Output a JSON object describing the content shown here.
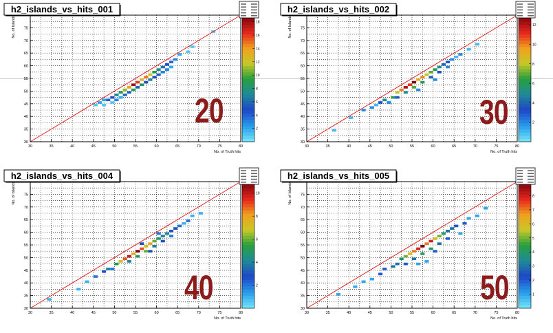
{
  "chart_data": [
    {
      "type": "heatmap",
      "title": "h2_islands_vs_hits_001",
      "xlabel": "No. of Truth hits",
      "ylabel": "No. of Islands",
      "xlim": [
        30,
        80
      ],
      "ylim": [
        30,
        80
      ],
      "xticks": [
        "30",
        "35",
        "40",
        "45",
        "50",
        "55",
        "60",
        "65",
        "70",
        "75",
        "80"
      ],
      "yticks": [
        "30",
        "35",
        "40",
        "45",
        "50",
        "55",
        "60",
        "65",
        "70",
        "75"
      ],
      "zticks": [
        "2",
        "4",
        "6",
        "8",
        "10",
        "12",
        "14",
        "16",
        "18"
      ],
      "zmax": 19,
      "grid": true,
      "reference_line": "y = x",
      "annotation": "20",
      "entries": [
        {
          "x": 45,
          "y": 44,
          "z": 1
        },
        {
          "x": 46,
          "y": 45,
          "z": 2
        },
        {
          "x": 47,
          "y": 46,
          "z": 2
        },
        {
          "x": 48,
          "y": 46,
          "z": 4
        },
        {
          "x": 49,
          "y": 47,
          "z": 5
        },
        {
          "x": 50,
          "y": 48,
          "z": 7
        },
        {
          "x": 51,
          "y": 49,
          "z": 9
        },
        {
          "x": 52,
          "y": 50,
          "z": 11
        },
        {
          "x": 53,
          "y": 51,
          "z": 14
        },
        {
          "x": 54,
          "y": 52,
          "z": 18
        },
        {
          "x": 55,
          "y": 53,
          "z": 16
        },
        {
          "x": 56,
          "y": 54,
          "z": 13
        },
        {
          "x": 57,
          "y": 55,
          "z": 15
        },
        {
          "x": 58,
          "y": 56,
          "z": 12
        },
        {
          "x": 59,
          "y": 57,
          "z": 9
        },
        {
          "x": 60,
          "y": 58,
          "z": 8
        },
        {
          "x": 61,
          "y": 59,
          "z": 6
        },
        {
          "x": 62,
          "y": 60,
          "z": 5
        },
        {
          "x": 63,
          "y": 61,
          "z": 4
        },
        {
          "x": 64,
          "y": 62,
          "z": 3
        },
        {
          "x": 65,
          "y": 64,
          "z": 2
        },
        {
          "x": 67,
          "y": 65,
          "z": 1
        },
        {
          "x": 50,
          "y": 46,
          "z": 3
        },
        {
          "x": 52,
          "y": 48,
          "z": 6
        },
        {
          "x": 54,
          "y": 50,
          "z": 9
        },
        {
          "x": 56,
          "y": 52,
          "z": 8
        },
        {
          "x": 58,
          "y": 54,
          "z": 7
        },
        {
          "x": 60,
          "y": 56,
          "z": 4
        },
        {
          "x": 62,
          "y": 58,
          "z": 3
        },
        {
          "x": 47,
          "y": 44,
          "z": 1
        },
        {
          "x": 53,
          "y": 49,
          "z": 4
        },
        {
          "x": 57,
          "y": 53,
          "z": 5
        },
        {
          "x": 61,
          "y": 57,
          "z": 3
        },
        {
          "x": 73,
          "y": 73,
          "z": 1
        },
        {
          "x": 68,
          "y": 67,
          "z": 1
        },
        {
          "x": 51,
          "y": 47,
          "z": 2
        },
        {
          "x": 55,
          "y": 51,
          "z": 6
        },
        {
          "x": 59,
          "y": 55,
          "z": 5
        },
        {
          "x": 63,
          "y": 59,
          "z": 2
        },
        {
          "x": 49,
          "y": 45,
          "z": 1
        }
      ]
    },
    {
      "type": "heatmap",
      "title": "h2_islands_vs_hits_002",
      "xlabel": "No. of Truth hits",
      "ylabel": "No. of Islands",
      "xlim": [
        30,
        80
      ],
      "ylim": [
        30,
        80
      ],
      "xticks": [
        "30",
        "35",
        "40",
        "45",
        "50",
        "55",
        "60",
        "65",
        "70",
        "75",
        "80"
      ],
      "yticks": [
        "30",
        "35",
        "40",
        "45",
        "50",
        "55",
        "60",
        "65",
        "70",
        "75"
      ],
      "zticks": [
        "2",
        "4",
        "6",
        "8",
        "10",
        "12"
      ],
      "zmax": 13,
      "grid": true,
      "reference_line": "y = x",
      "annotation": "30",
      "entries": [
        {
          "x": 36,
          "y": 34,
          "z": 1
        },
        {
          "x": 40,
          "y": 39,
          "z": 1
        },
        {
          "x": 43,
          "y": 42,
          "z": 2
        },
        {
          "x": 45,
          "y": 43,
          "z": 2
        },
        {
          "x": 47,
          "y": 45,
          "z": 3
        },
        {
          "x": 48,
          "y": 46,
          "z": 5
        },
        {
          "x": 50,
          "y": 47,
          "z": 6
        },
        {
          "x": 51,
          "y": 49,
          "z": 8
        },
        {
          "x": 52,
          "y": 50,
          "z": 10
        },
        {
          "x": 53,
          "y": 51,
          "z": 12
        },
        {
          "x": 54,
          "y": 52,
          "z": 11
        },
        {
          "x": 55,
          "y": 53,
          "z": 13
        },
        {
          "x": 56,
          "y": 54,
          "z": 9
        },
        {
          "x": 57,
          "y": 55,
          "z": 10
        },
        {
          "x": 58,
          "y": 56,
          "z": 8
        },
        {
          "x": 59,
          "y": 57,
          "z": 7
        },
        {
          "x": 60,
          "y": 58,
          "z": 6
        },
        {
          "x": 61,
          "y": 59,
          "z": 5
        },
        {
          "x": 62,
          "y": 60,
          "z": 4
        },
        {
          "x": 63,
          "y": 61,
          "z": 3
        },
        {
          "x": 64,
          "y": 62,
          "z": 2
        },
        {
          "x": 66,
          "y": 64,
          "z": 2
        },
        {
          "x": 68,
          "y": 66,
          "z": 1
        },
        {
          "x": 70,
          "y": 68,
          "z": 1
        },
        {
          "x": 53,
          "y": 49,
          "z": 5
        },
        {
          "x": 55,
          "y": 51,
          "z": 7
        },
        {
          "x": 57,
          "y": 53,
          "z": 6
        },
        {
          "x": 59,
          "y": 55,
          "z": 4
        },
        {
          "x": 61,
          "y": 57,
          "z": 3
        },
        {
          "x": 49,
          "y": 45,
          "z": 2
        },
        {
          "x": 51,
          "y": 47,
          "z": 3
        },
        {
          "x": 63,
          "y": 59,
          "z": 2
        },
        {
          "x": 56,
          "y": 50,
          "z": 2
        },
        {
          "x": 60,
          "y": 54,
          "z": 2
        },
        {
          "x": 46,
          "y": 44,
          "z": 1
        },
        {
          "x": 65,
          "y": 63,
          "z": 1
        }
      ]
    },
    {
      "type": "heatmap",
      "title": "h2_islands_vs_hits_004",
      "xlabel": "No. of Truth hits",
      "ylabel": "No. of Islands",
      "xlim": [
        30,
        80
      ],
      "ylim": [
        30,
        80
      ],
      "xticks": [
        "30",
        "35",
        "40",
        "45",
        "50",
        "55",
        "60",
        "65",
        "70",
        "75",
        "80"
      ],
      "yticks": [
        "30",
        "35",
        "40",
        "45",
        "50",
        "55",
        "60",
        "65",
        "70",
        "75"
      ],
      "zticks": [
        "2",
        "4",
        "6",
        "8",
        "10"
      ],
      "zmax": 11,
      "grid": true,
      "reference_line": "y = x",
      "annotation": "40",
      "entries": [
        {
          "x": 34,
          "y": 33,
          "z": 1
        },
        {
          "x": 41,
          "y": 37,
          "z": 1
        },
        {
          "x": 43,
          "y": 40,
          "z": 1
        },
        {
          "x": 45,
          "y": 42,
          "z": 2
        },
        {
          "x": 47,
          "y": 44,
          "z": 3
        },
        {
          "x": 48,
          "y": 45,
          "z": 4
        },
        {
          "x": 50,
          "y": 47,
          "z": 5
        },
        {
          "x": 51,
          "y": 48,
          "z": 7
        },
        {
          "x": 52,
          "y": 49,
          "z": 9
        },
        {
          "x": 53,
          "y": 50,
          "z": 10
        },
        {
          "x": 54,
          "y": 51,
          "z": 8
        },
        {
          "x": 55,
          "y": 52,
          "z": 11
        },
        {
          "x": 56,
          "y": 53,
          "z": 9
        },
        {
          "x": 57,
          "y": 54,
          "z": 7
        },
        {
          "x": 58,
          "y": 55,
          "z": 8
        },
        {
          "x": 59,
          "y": 56,
          "z": 6
        },
        {
          "x": 60,
          "y": 57,
          "z": 5
        },
        {
          "x": 61,
          "y": 58,
          "z": 4
        },
        {
          "x": 62,
          "y": 59,
          "z": 4
        },
        {
          "x": 63,
          "y": 60,
          "z": 3
        },
        {
          "x": 64,
          "y": 61,
          "z": 3
        },
        {
          "x": 65,
          "y": 62,
          "z": 2
        },
        {
          "x": 67,
          "y": 64,
          "z": 2
        },
        {
          "x": 68,
          "y": 66,
          "z": 1
        },
        {
          "x": 70,
          "y": 67,
          "z": 1
        },
        {
          "x": 53,
          "y": 48,
          "z": 4
        },
        {
          "x": 55,
          "y": 50,
          "z": 5
        },
        {
          "x": 57,
          "y": 52,
          "z": 6
        },
        {
          "x": 59,
          "y": 54,
          "z": 4
        },
        {
          "x": 61,
          "y": 56,
          "z": 3
        },
        {
          "x": 63,
          "y": 58,
          "z": 2
        },
        {
          "x": 49,
          "y": 45,
          "z": 2
        },
        {
          "x": 56,
          "y": 55,
          "z": 3
        },
        {
          "x": 60,
          "y": 59,
          "z": 2
        },
        {
          "x": 66,
          "y": 63,
          "z": 1
        },
        {
          "x": 58,
          "y": 52,
          "z": 3
        }
      ]
    },
    {
      "type": "heatmap",
      "title": "h2_islands_vs_hits_005",
      "xlabel": "No. of Truth hits",
      "ylabel": "No. of Islands",
      "xlim": [
        30,
        80
      ],
      "ylim": [
        30,
        80
      ],
      "xticks": [
        "30",
        "35",
        "40",
        "45",
        "50",
        "55",
        "60",
        "65",
        "70",
        "75",
        "80"
      ],
      "yticks": [
        "30",
        "35",
        "40",
        "45",
        "50",
        "55",
        "60",
        "65",
        "70",
        "75"
      ],
      "zticks": [
        "1",
        "2",
        "3",
        "4",
        "5",
        "6",
        "7",
        "8"
      ],
      "zmax": 9,
      "grid": true,
      "reference_line": "y = x",
      "annotation": "50",
      "entries": [
        {
          "x": 37,
          "y": 35,
          "z": 1
        },
        {
          "x": 41,
          "y": 38,
          "z": 1
        },
        {
          "x": 43,
          "y": 40,
          "z": 1
        },
        {
          "x": 45,
          "y": 41,
          "z": 1
        },
        {
          "x": 47,
          "y": 43,
          "z": 2
        },
        {
          "x": 48,
          "y": 45,
          "z": 2
        },
        {
          "x": 50,
          "y": 46,
          "z": 3
        },
        {
          "x": 51,
          "y": 47,
          "z": 3
        },
        {
          "x": 52,
          "y": 49,
          "z": 4
        },
        {
          "x": 53,
          "y": 50,
          "z": 5
        },
        {
          "x": 54,
          "y": 51,
          "z": 6
        },
        {
          "x": 55,
          "y": 52,
          "z": 7
        },
        {
          "x": 56,
          "y": 53,
          "z": 8
        },
        {
          "x": 57,
          "y": 54,
          "z": 9
        },
        {
          "x": 58,
          "y": 55,
          "z": 7
        },
        {
          "x": 59,
          "y": 56,
          "z": 8
        },
        {
          "x": 60,
          "y": 57,
          "z": 6
        },
        {
          "x": 61,
          "y": 58,
          "z": 5
        },
        {
          "x": 62,
          "y": 59,
          "z": 4
        },
        {
          "x": 63,
          "y": 60,
          "z": 3
        },
        {
          "x": 64,
          "y": 61,
          "z": 3
        },
        {
          "x": 65,
          "y": 62,
          "z": 2
        },
        {
          "x": 67,
          "y": 63,
          "z": 2
        },
        {
          "x": 68,
          "y": 65,
          "z": 1
        },
        {
          "x": 72,
          "y": 69,
          "z": 1
        },
        {
          "x": 55,
          "y": 49,
          "z": 3
        },
        {
          "x": 57,
          "y": 51,
          "z": 4
        },
        {
          "x": 59,
          "y": 53,
          "z": 4
        },
        {
          "x": 61,
          "y": 55,
          "z": 3
        },
        {
          "x": 53,
          "y": 47,
          "z": 2
        },
        {
          "x": 63,
          "y": 57,
          "z": 2
        },
        {
          "x": 58,
          "y": 48,
          "z": 1
        },
        {
          "x": 56,
          "y": 47,
          "z": 1
        },
        {
          "x": 66,
          "y": 59,
          "z": 1
        },
        {
          "x": 60,
          "y": 52,
          "z": 2
        },
        {
          "x": 70,
          "y": 66,
          "z": 1
        }
      ]
    }
  ]
}
